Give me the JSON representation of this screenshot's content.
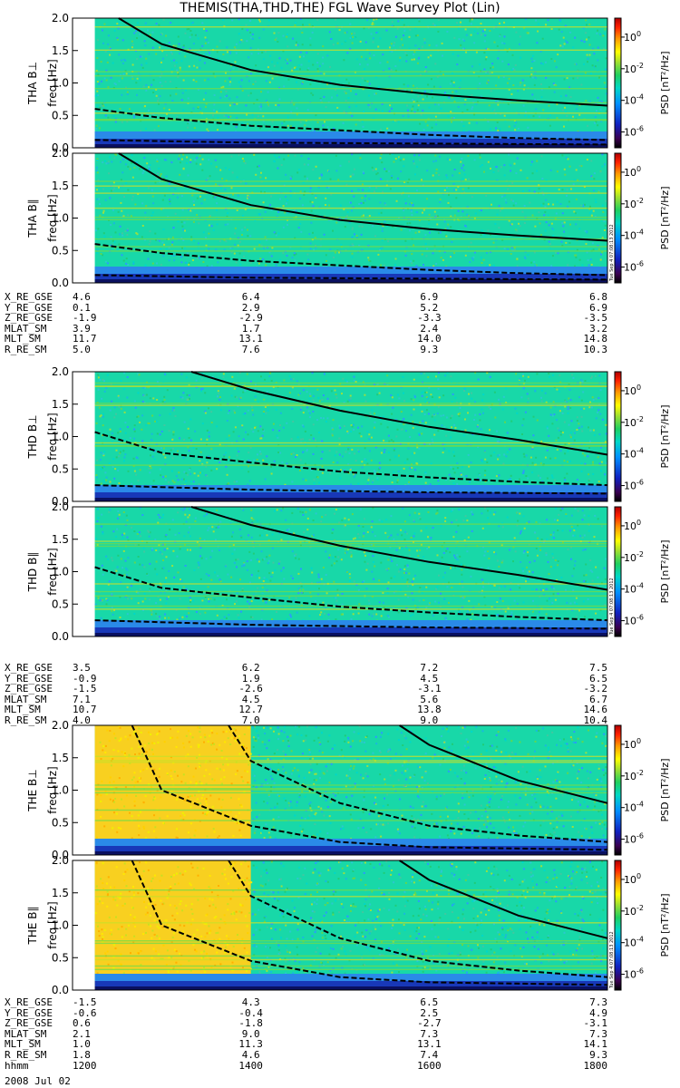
{
  "title": "THEMIS(THA,THD,THE) FGL Wave Survey Plot (Lin)",
  "date_label": "2008 Jul 02",
  "chart_data": {
    "type": "heatmap",
    "freq_range_hz": [
      0,
      2.0
    ],
    "yticks": [
      "0.0",
      "0.5",
      "1.0",
      "1.5",
      "2.0"
    ],
    "ylabel": "freq [Hz]",
    "colorbar_label": "PSD [nT²/Hz]",
    "colorbar_scale": "log",
    "colorbar_ticks": [
      {
        "exp": 0,
        "label": "10",
        "sup": "0"
      },
      {
        "exp": -2,
        "label": "10",
        "sup": "-2"
      },
      {
        "exp": -4,
        "label": "10",
        "sup": "-4"
      },
      {
        "exp": -6,
        "label": "10",
        "sup": "-6"
      }
    ],
    "colorbar_range_exp": [
      -7,
      1.2
    ],
    "stamp": "Tue Sep 4 07:08:13 2012",
    "time_range_hhmm": [
      "1200",
      "1800"
    ],
    "panels": [
      {
        "probe": "THA",
        "component": "B⊥",
        "label": "THA B⊥",
        "data_start_hhmm": "1215",
        "solid_curve": [
          [
            1231,
            2.0
          ],
          [
            1300,
            1.6
          ],
          [
            1400,
            1.2
          ],
          [
            1500,
            0.97
          ],
          [
            1600,
            0.83
          ],
          [
            1700,
            0.73
          ],
          [
            1800,
            0.65
          ]
        ],
        "dashed_curve": [
          [
            1215,
            0.6
          ],
          [
            1300,
            0.46
          ],
          [
            1400,
            0.34
          ],
          [
            1500,
            0.27
          ],
          [
            1600,
            0.2
          ],
          [
            1700,
            0.15
          ],
          [
            1800,
            0.12
          ]
        ],
        "lower_curve": [
          [
            1215,
            0.12
          ],
          [
            1400,
            0.08
          ],
          [
            1800,
            0.05
          ]
        ]
      },
      {
        "probe": "THA",
        "component": "B∥",
        "label": "THA B∥",
        "data_start_hhmm": "1215",
        "solid_curve": [
          [
            1231,
            2.0
          ],
          [
            1300,
            1.6
          ],
          [
            1400,
            1.2
          ],
          [
            1500,
            0.97
          ],
          [
            1600,
            0.83
          ],
          [
            1700,
            0.73
          ],
          [
            1800,
            0.65
          ]
        ],
        "dashed_curve": [
          [
            1215,
            0.6
          ],
          [
            1300,
            0.46
          ],
          [
            1400,
            0.34
          ],
          [
            1500,
            0.27
          ],
          [
            1600,
            0.2
          ],
          [
            1700,
            0.15
          ],
          [
            1800,
            0.12
          ]
        ],
        "lower_curve": [
          [
            1215,
            0.12
          ],
          [
            1400,
            0.08
          ],
          [
            1800,
            0.05
          ]
        ]
      },
      {
        "probe": "THD",
        "component": "B⊥",
        "label": "THD B⊥",
        "data_start_hhmm": "1215",
        "solid_curve": [
          [
            1320,
            2.0
          ],
          [
            1400,
            1.72
          ],
          [
            1500,
            1.4
          ],
          [
            1600,
            1.15
          ],
          [
            1700,
            0.95
          ],
          [
            1800,
            0.72
          ]
        ],
        "dashed_curve": [
          [
            1215,
            1.07
          ],
          [
            1300,
            0.75
          ],
          [
            1400,
            0.6
          ],
          [
            1500,
            0.46
          ],
          [
            1600,
            0.37
          ],
          [
            1700,
            0.3
          ],
          [
            1800,
            0.25
          ]
        ],
        "lower_curve": [
          [
            1215,
            0.25
          ],
          [
            1400,
            0.18
          ],
          [
            1600,
            0.14
          ],
          [
            1800,
            0.12
          ]
        ]
      },
      {
        "probe": "THD",
        "component": "B∥",
        "label": "THD B∥",
        "data_start_hhmm": "1215",
        "solid_curve": [
          [
            1320,
            2.0
          ],
          [
            1400,
            1.72
          ],
          [
            1500,
            1.4
          ],
          [
            1600,
            1.15
          ],
          [
            1700,
            0.95
          ],
          [
            1800,
            0.72
          ]
        ],
        "dashed_curve": [
          [
            1215,
            1.07
          ],
          [
            1300,
            0.75
          ],
          [
            1400,
            0.6
          ],
          [
            1500,
            0.46
          ],
          [
            1600,
            0.37
          ],
          [
            1700,
            0.3
          ],
          [
            1800,
            0.25
          ]
        ],
        "lower_curve": [
          [
            1215,
            0.25
          ],
          [
            1400,
            0.18
          ],
          [
            1600,
            0.14
          ],
          [
            1800,
            0.12
          ]
        ]
      },
      {
        "probe": "THE",
        "component": "B⊥",
        "label": "THE B⊥",
        "data_start_hhmm": "1215",
        "enhanced_until_hhmm": "1400",
        "solid_curve": [
          [
            1540,
            2.0
          ],
          [
            1600,
            1.7
          ],
          [
            1700,
            1.15
          ],
          [
            1800,
            0.8
          ]
        ],
        "dashed_curve": [
          [
            1345,
            2.0
          ],
          [
            1400,
            1.45
          ],
          [
            1500,
            0.8
          ],
          [
            1600,
            0.45
          ],
          [
            1700,
            0.3
          ],
          [
            1800,
            0.2
          ]
        ],
        "lower_curve": [
          [
            1240,
            2.0
          ],
          [
            1300,
            1.0
          ],
          [
            1400,
            0.45
          ],
          [
            1500,
            0.2
          ],
          [
            1600,
            0.12
          ],
          [
            1800,
            0.08
          ]
        ]
      },
      {
        "probe": "THE",
        "component": "B∥",
        "label": "THE B∥",
        "data_start_hhmm": "1215",
        "enhanced_until_hhmm": "1400",
        "solid_curve": [
          [
            1540,
            2.0
          ],
          [
            1600,
            1.7
          ],
          [
            1700,
            1.15
          ],
          [
            1800,
            0.8
          ]
        ],
        "dashed_curve": [
          [
            1345,
            2.0
          ],
          [
            1400,
            1.45
          ],
          [
            1500,
            0.8
          ],
          [
            1600,
            0.45
          ],
          [
            1700,
            0.3
          ],
          [
            1800,
            0.2
          ]
        ],
        "lower_curve": [
          [
            1240,
            2.0
          ],
          [
            1300,
            1.0
          ],
          [
            1400,
            0.45
          ],
          [
            1500,
            0.2
          ],
          [
            1600,
            0.12
          ],
          [
            1800,
            0.08
          ]
        ]
      }
    ],
    "ephemeris": [
      {
        "probe": "THA",
        "rows": [
          {
            "label": "X_RE_GSE",
            "values": [
              "4.6",
              "6.4",
              "6.9",
              "6.8"
            ]
          },
          {
            "label": "Y_RE_GSE",
            "values": [
              "0.1",
              "2.9",
              "5.2",
              "6.9"
            ]
          },
          {
            "label": "Z_RE_GSE",
            "values": [
              "-1.9",
              "-2.9",
              "-3.3",
              "-3.5"
            ]
          },
          {
            "label": "MLAT_SM",
            "values": [
              "3.9",
              "1.7",
              "2.4",
              "3.2"
            ]
          },
          {
            "label": "MLT_SM",
            "values": [
              "11.7",
              "13.1",
              "14.0",
              "14.8"
            ]
          },
          {
            "label": "R_RE_SM",
            "values": [
              "5.0",
              "7.6",
              "9.3",
              "10.3"
            ]
          }
        ]
      },
      {
        "probe": "THD",
        "rows": [
          {
            "label": "X_RE_GSE",
            "values": [
              "3.5",
              "6.2",
              "7.2",
              "7.5"
            ]
          },
          {
            "label": "Y_RE_GSE",
            "values": [
              "-0.9",
              "1.9",
              "4.5",
              "6.5"
            ]
          },
          {
            "label": "Z_RE_GSE",
            "values": [
              "-1.5",
              "-2.6",
              "-3.1",
              "-3.2"
            ]
          },
          {
            "label": "MLAT_SM",
            "values": [
              "7.1",
              "4.5",
              "5.6",
              "6.7"
            ]
          },
          {
            "label": "MLT_SM",
            "values": [
              "10.7",
              "12.7",
              "13.8",
              "14.6"
            ]
          },
          {
            "label": "R_RE_SM",
            "values": [
              "4.0",
              "7.0",
              "9.0",
              "10.4"
            ]
          }
        ]
      },
      {
        "probe": "THE",
        "rows": [
          {
            "label": "X_RE_GSE",
            "values": [
              "-1.5",
              "4.3",
              "6.5",
              "7.3"
            ]
          },
          {
            "label": "Y_RE_GSE",
            "values": [
              "-0.6",
              "-0.4",
              "2.5",
              "4.9"
            ]
          },
          {
            "label": "Z_RE_GSE",
            "values": [
              "0.6",
              "-1.8",
              "-2.7",
              "-3.1"
            ]
          },
          {
            "label": "MLAT_SM",
            "values": [
              "2.1",
              "9.0",
              "7.3",
              "7.3"
            ]
          },
          {
            "label": "MLT_SM",
            "values": [
              "1.0",
              "11.3",
              "13.1",
              "14.1"
            ]
          },
          {
            "label": "R_RE_SM",
            "values": [
              "1.8",
              "4.6",
              "7.4",
              "9.3"
            ]
          },
          {
            "label": "hhmm",
            "values": [
              "1200",
              "1400",
              "1600",
              "1800"
            ]
          }
        ]
      }
    ]
  }
}
